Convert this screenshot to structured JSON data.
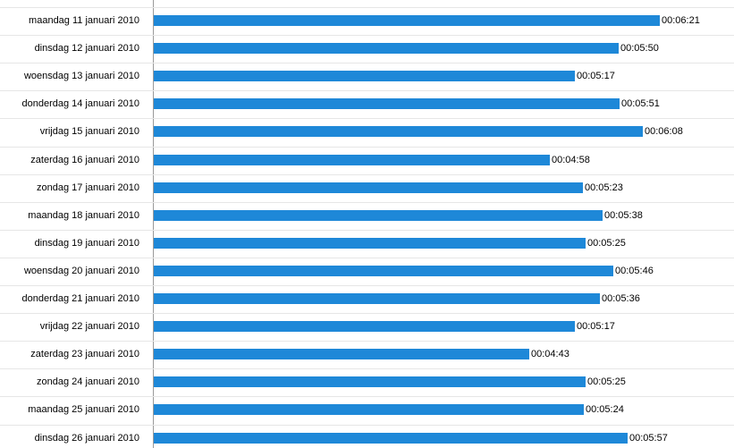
{
  "chart_data": {
    "type": "bar",
    "orientation": "horizontal",
    "categories": [
      "maandag 11 januari 2010",
      "dinsdag 12 januari 2010",
      "woensdag 13 januari 2010",
      "donderdag 14 januari 2010",
      "vrijdag 15 januari 2010",
      "zaterdag 16 januari 2010",
      "zondag 17 januari 2010",
      "maandag 18 januari 2010",
      "dinsdag 19 januari 2010",
      "woensdag 20 januari 2010",
      "donderdag 21 januari 2010",
      "vrijdag 22 januari 2010",
      "zaterdag 23 januari 2010",
      "zondag 24 januari 2010",
      "maandag 25 januari 2010",
      "dinsdag 26 januari 2010"
    ],
    "values": [
      "00:06:21",
      "00:05:50",
      "00:05:17",
      "00:05:51",
      "00:06:08",
      "00:04:58",
      "00:05:23",
      "00:05:38",
      "00:05:25",
      "00:05:46",
      "00:05:36",
      "00:05:17",
      "00:04:43",
      "00:05:25",
      "00:05:24",
      "00:05:57"
    ],
    "bar_color": "#1e88d8",
    "grid": false,
    "legend": "none"
  }
}
